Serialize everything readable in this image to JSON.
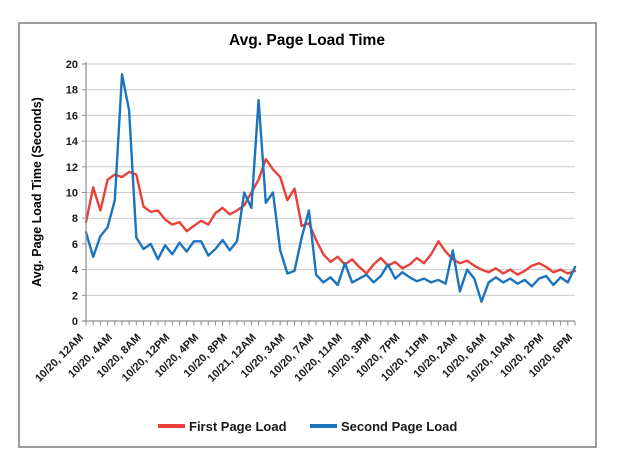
{
  "window": {
    "background": "#ffffff",
    "frame_border_color": "#9b9b9b",
    "gridline_color": "#c8c8c8",
    "axis_color": "#8e8e8e"
  },
  "chart_data": {
    "type": "line",
    "title": "Avg. Page Load Time",
    "xlabel": "",
    "ylabel": "Avg. Page Load Time (Seconds)",
    "ylim": [
      0,
      20
    ],
    "yticks": [
      0,
      2,
      4,
      6,
      8,
      10,
      12,
      14,
      16,
      18,
      20
    ],
    "grid": true,
    "legend_position": "bottom",
    "x_label_every": 4,
    "x_tick_labels": [
      "10/20, 12AM",
      "10/20, 4AM",
      "10/20, 8AM",
      "10/20, 12PM",
      "10/20, 4PM",
      "10/20, 8PM",
      "10/21, 12AM",
      "10/20, 3AM",
      "10/20, 7AM",
      "10/20, 11AM",
      "10/20, 3PM",
      "10/20, 7PM",
      "10/20, 11PM",
      "10/20, 2AM",
      "10/20, 6AM",
      "10/20, 10AM",
      "10/20, 2PM",
      "10/20, 6PM"
    ],
    "series": [
      {
        "name": "First Page Load",
        "color": "#e8413b",
        "values": [
          7.7,
          10.4,
          8.6,
          11.0,
          11.4,
          11.2,
          11.6,
          11.4,
          8.9,
          8.5,
          8.6,
          7.9,
          7.5,
          7.7,
          7.0,
          7.4,
          7.8,
          7.5,
          8.4,
          8.8,
          8.3,
          8.6,
          9.0,
          10.0,
          11.0,
          12.6,
          11.8,
          11.2,
          9.4,
          10.3,
          7.4,
          7.6,
          6.3,
          5.2,
          4.6,
          5.0,
          4.4,
          4.8,
          4.2,
          3.7,
          4.4,
          4.9,
          4.3,
          4.6,
          4.1,
          4.4,
          4.9,
          4.5,
          5.2,
          6.2,
          5.4,
          4.8,
          4.5,
          4.7,
          4.3,
          4.0,
          3.8,
          4.1,
          3.7,
          4.0,
          3.6,
          3.9,
          4.3,
          4.5,
          4.2,
          3.8,
          4.0,
          3.7,
          3.9
        ]
      },
      {
        "name": "Second Page Load",
        "color": "#1b74bc",
        "values": [
          6.9,
          5.0,
          6.6,
          7.3,
          9.4,
          19.2,
          16.4,
          6.5,
          5.6,
          6.0,
          4.8,
          5.9,
          5.2,
          6.1,
          5.4,
          6.2,
          6.2,
          5.1,
          5.6,
          6.3,
          5.5,
          6.2,
          10.0,
          8.8,
          17.2,
          9.2,
          10.0,
          5.5,
          3.7,
          3.9,
          6.5,
          8.6,
          3.6,
          3.0,
          3.4,
          2.8,
          4.5,
          3.0,
          3.3,
          3.6,
          3.0,
          3.5,
          4.4,
          3.3,
          3.8,
          3.4,
          3.1,
          3.3,
          3.0,
          3.2,
          2.9,
          5.5,
          2.3,
          4.0,
          3.3,
          1.5,
          3.0,
          3.4,
          3.0,
          3.3,
          2.9,
          3.2,
          2.7,
          3.3,
          3.5,
          2.8,
          3.4,
          3.0,
          4.2
        ]
      }
    ]
  }
}
